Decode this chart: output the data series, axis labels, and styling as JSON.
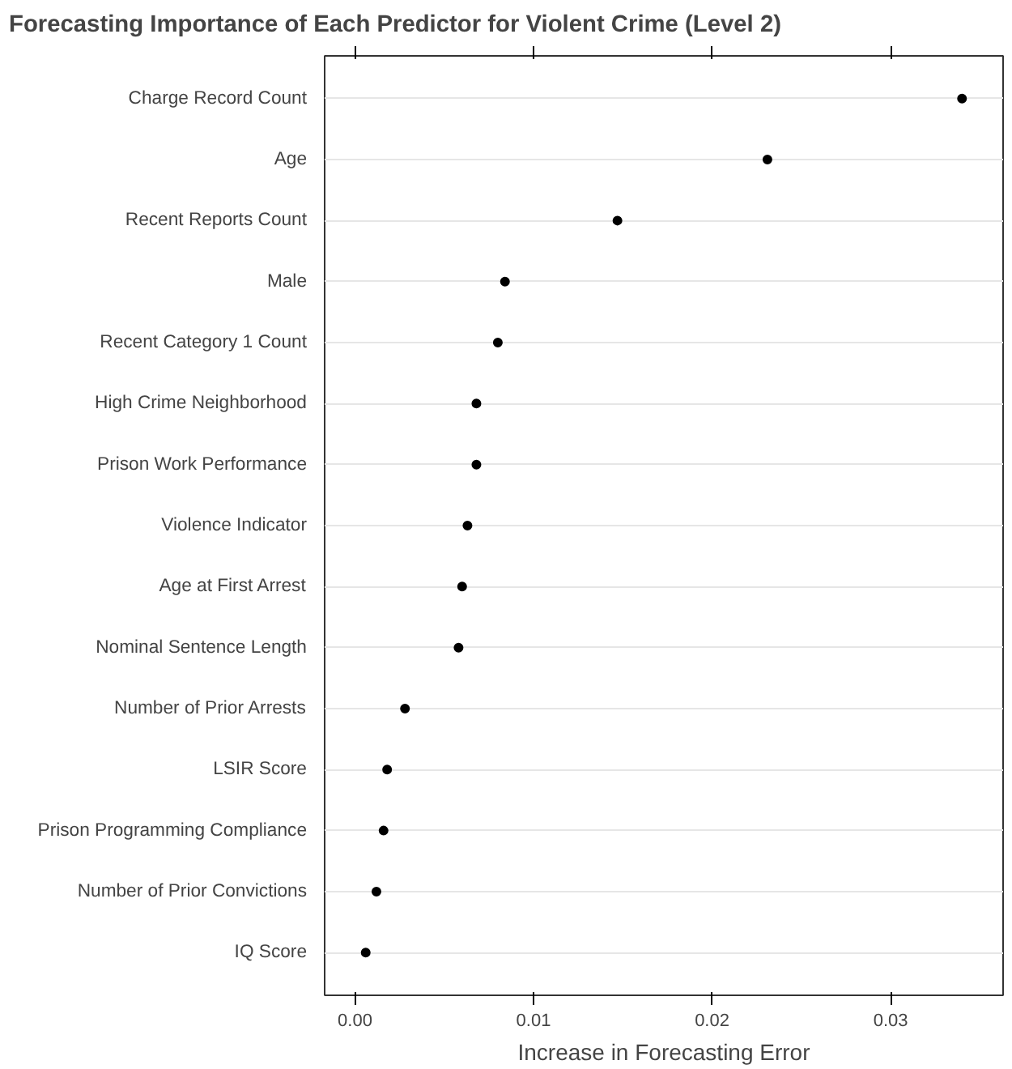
{
  "chart_data": {
    "type": "scatter",
    "orientation": "horizontal",
    "title": "Forecasting Importance of Each Predictor for Violent Crime (Level 2)",
    "xlabel": "Increase in Forecasting Error",
    "categories": [
      "Charge Record Count",
      "Age",
      "Recent Reports Count",
      "Male",
      "Recent Category 1 Count",
      "High Crime Neighborhood",
      "Prison Work Performance",
      "Violence Indicator",
      "Age at First Arrest",
      "Nominal Sentence Length",
      "Number of Prior Arrests",
      "LSIR Score",
      "Prison Programming Compliance",
      "Number of Prior Convictions",
      "IQ Score"
    ],
    "series": [
      {
        "color": "#000000",
        "values": [
          0.034,
          0.0231,
          0.0147,
          0.0084,
          0.008,
          0.0068,
          0.0068,
          0.0063,
          0.006,
          0.0058,
          0.0028,
          0.0018,
          0.0016,
          0.0012,
          0.0006
        ]
      }
    ],
    "xlim": [
      -0.0017,
      0.0363
    ],
    "xticks": [
      {
        "value": 0,
        "label": "0.00"
      },
      {
        "value": 0.01,
        "label": "0.01"
      },
      {
        "value": 0.02,
        "label": "0.02"
      },
      {
        "value": 0.03,
        "label": "0.03"
      }
    ],
    "grid": "y",
    "marker": "circle"
  }
}
